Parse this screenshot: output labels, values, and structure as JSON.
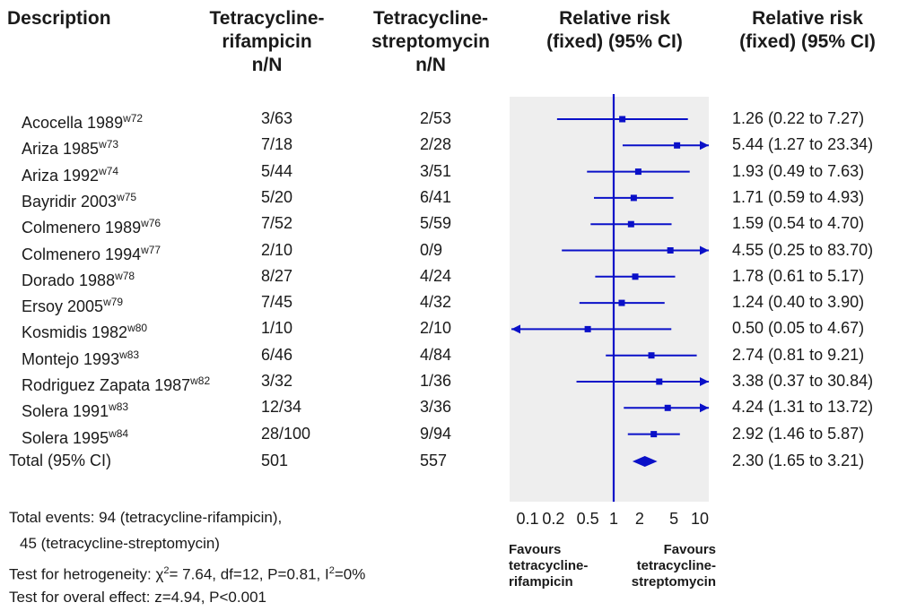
{
  "headers": {
    "description": "Description",
    "col_a": [
      "Tetracycline-",
      "rifampicin",
      "n/N"
    ],
    "col_b": [
      "Tetracycline-",
      "streptomycin",
      "n/N"
    ],
    "plot": [
      "Relative risk",
      "(fixed) (95% CI)"
    ],
    "rr": [
      "Relative risk",
      "(fixed) (95% CI)"
    ]
  },
  "chart_data": {
    "type": "forest",
    "scale": "log",
    "xticks": [
      0.1,
      0.2,
      0.5,
      1,
      2,
      5,
      10
    ],
    "xtick_labels": [
      "0.1",
      "0.2",
      "0.5",
      "1",
      "2",
      "5",
      "10"
    ],
    "xlim": [
      0.1,
      10
    ],
    "reference_line": 1,
    "color": "#0a10c8",
    "studies": [
      {
        "name": "Acocella 1989",
        "ref": "w72",
        "a": "3/63",
        "b": "2/53",
        "rr": 1.26,
        "lo": 0.22,
        "hi": 7.27,
        "rr_text": "1.26 (0.22 to 7.27)"
      },
      {
        "name": "Ariza 1985",
        "ref": "w73",
        "a": "7/18",
        "b": "2/28",
        "rr": 5.44,
        "lo": 1.27,
        "hi": 23.34,
        "rr_text": "5.44 (1.27 to 23.34)"
      },
      {
        "name": "Ariza 1992",
        "ref": "w74",
        "a": "5/44",
        "b": "3/51",
        "rr": 1.93,
        "lo": 0.49,
        "hi": 7.63,
        "rr_text": "1.93 (0.49 to 7.63)"
      },
      {
        "name": "Bayridir 2003",
        "ref": "w75",
        "a": "5/20",
        "b": "6/41",
        "rr": 1.71,
        "lo": 0.59,
        "hi": 4.93,
        "rr_text": "1.71 (0.59 to 4.93)"
      },
      {
        "name": "Colmenero 1989",
        "ref": "w76",
        "a": "7/52",
        "b": "5/59",
        "rr": 1.59,
        "lo": 0.54,
        "hi": 4.7,
        "rr_text": "1.59 (0.54 to 4.70)"
      },
      {
        "name": "Colmenero 1994",
        "ref": "w77",
        "a": "2/10",
        "b": "0/9",
        "rr": 4.55,
        "lo": 0.25,
        "hi": 83.7,
        "rr_text": "4.55 (0.25 to 83.70)"
      },
      {
        "name": "Dorado 1988",
        "ref": "w78",
        "a": "8/27",
        "b": "4/24",
        "rr": 1.78,
        "lo": 0.61,
        "hi": 5.17,
        "rr_text": "1.78 (0.61 to 5.17)"
      },
      {
        "name": "Ersoy 2005",
        "ref": "w79",
        "a": "7/45",
        "b": "4/32",
        "rr": 1.24,
        "lo": 0.4,
        "hi": 3.9,
        "rr_text": "1.24 (0.40 to 3.90)"
      },
      {
        "name": "Kosmidis 1982",
        "ref": "w80",
        "a": "1/10",
        "b": "2/10",
        "rr": 0.5,
        "lo": 0.05,
        "hi": 4.67,
        "rr_text": "0.50 (0.05 to 4.67)"
      },
      {
        "name": "Montejo 1993",
        "ref": "w83",
        "a": "6/46",
        "b": "4/84",
        "rr": 2.74,
        "lo": 0.81,
        "hi": 9.21,
        "rr_text": "2.74 (0.81 to 9.21)"
      },
      {
        "name": "Rodriguez Zapata 1987",
        "ref": "w82",
        "a": "3/32",
        "b": "1/36",
        "rr": 3.38,
        "lo": 0.37,
        "hi": 30.84,
        "rr_text": "3.38 (0.37 to 30.84)"
      },
      {
        "name": "Solera 1991",
        "ref": "w83",
        "a": "12/34",
        "b": "3/36",
        "rr": 4.24,
        "lo": 1.31,
        "hi": 13.72,
        "rr_text": "4.24 (1.31 to 13.72)"
      },
      {
        "name": "Solera 1995",
        "ref": "w84",
        "a": "28/100",
        "b": "9/94",
        "rr": 2.92,
        "lo": 1.46,
        "hi": 5.87,
        "rr_text": "2.92 (1.46 to 5.87)"
      }
    ],
    "total": {
      "name": "Total (95% CI)",
      "a": "501",
      "b": "557",
      "rr": 2.3,
      "lo": 1.65,
      "hi": 3.21,
      "rr_text": "2.30 (1.65 to 3.21)"
    }
  },
  "footer": {
    "events_1": "Total events: 94 (tetracycline-rifampicin),",
    "events_2": "45 (tetracycline-streptomycin)",
    "het_prefix": "Test for hetrogeneity:  χ",
    "het_sup": "2",
    "het_mid": "= 7.64, df=12, P=0.81, I",
    "het_sup2": "2",
    "het_end": "=0%",
    "overall": "Test for overal effect: z=4.94, P<0.001"
  },
  "favours": {
    "left": [
      "Favours",
      "tetracycline-",
      "rifampicin"
    ],
    "right": [
      "Favours",
      "tetracycline-",
      "streptomycin"
    ]
  }
}
